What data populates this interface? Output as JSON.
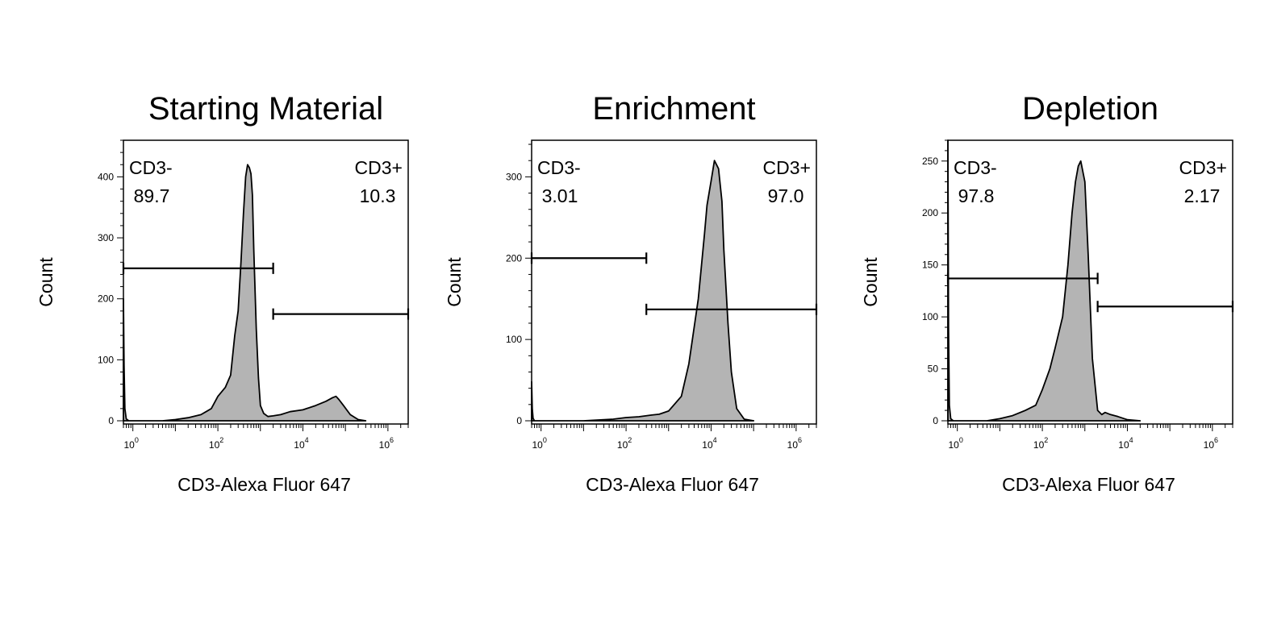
{
  "chart_data": [
    {
      "type": "area",
      "title": "Starting Material",
      "xlabel": "CD3-Alexa Fluor 647",
      "ylabel": "Count",
      "xscale": "log",
      "xlim": [
        0.6,
        3000000
      ],
      "ylim": [
        0,
        460
      ],
      "x_ticks": [
        {
          "value": 1,
          "base": "10",
          "exp": "0"
        },
        {
          "value": 100,
          "base": "10",
          "exp": "2"
        },
        {
          "value": 10000,
          "base": "10",
          "exp": "4"
        },
        {
          "value": 1000000,
          "base": "10",
          "exp": "6"
        }
      ],
      "y_ticks": [
        {
          "value": 0,
          "label": "0"
        },
        {
          "value": 100,
          "label": "100"
        },
        {
          "value": 200,
          "label": "200"
        },
        {
          "value": 300,
          "label": "300"
        },
        {
          "value": 400,
          "label": "400"
        }
      ],
      "histogram": {
        "x": [
          0.6,
          0.62,
          0.65,
          0.7,
          0.8,
          5,
          10,
          20,
          40,
          70,
          100,
          150,
          200,
          250,
          300,
          350,
          400,
          450,
          500,
          550,
          600,
          650,
          700,
          800,
          900,
          1000,
          1200,
          1500,
          2000,
          3000,
          5000,
          10000,
          20000,
          35000,
          50000,
          60000,
          70000,
          90000,
          130000,
          200000,
          300000
        ],
        "y": [
          200,
          90,
          20,
          3,
          0,
          0,
          2,
          5,
          10,
          20,
          40,
          55,
          75,
          140,
          180,
          260,
          340,
          400,
          420,
          415,
          405,
          370,
          280,
          150,
          70,
          25,
          12,
          7,
          8,
          10,
          15,
          18,
          25,
          32,
          38,
          40,
          35,
          25,
          10,
          2,
          0
        ]
      },
      "gates": [
        {
          "name": "CD3-",
          "x_range": [
            0.6,
            2000
          ],
          "y_level": 250,
          "percent": "89.7",
          "position": "top-left"
        },
        {
          "name": "CD3+",
          "x_range": [
            2000,
            3000000
          ],
          "y_level": 175,
          "percent": "10.3",
          "position": "top-right"
        }
      ]
    },
    {
      "type": "area",
      "title": "Enrichment",
      "xlabel": "CD3-Alexa Fluor 647",
      "ylabel": "Count",
      "xscale": "log",
      "xlim": [
        0.6,
        3000000
      ],
      "ylim": [
        0,
        345
      ],
      "x_ticks": [
        {
          "value": 1,
          "base": "10",
          "exp": "0"
        },
        {
          "value": 100,
          "base": "10",
          "exp": "2"
        },
        {
          "value": 10000,
          "base": "10",
          "exp": "4"
        },
        {
          "value": 1000000,
          "base": "10",
          "exp": "6"
        }
      ],
      "y_ticks": [
        {
          "value": 0,
          "label": "0"
        },
        {
          "value": 100,
          "label": "100"
        },
        {
          "value": 200,
          "label": "200"
        },
        {
          "value": 300,
          "label": "300"
        }
      ],
      "histogram": {
        "x": [
          0.6,
          0.62,
          0.65,
          0.7,
          1,
          10,
          50,
          100,
          200,
          400,
          600,
          1000,
          2000,
          3000,
          5000,
          7000,
          8000,
          10000,
          12000,
          15000,
          18000,
          20000,
          25000,
          30000,
          40000,
          60000,
          100000
        ],
        "y": [
          48,
          15,
          3,
          0,
          0,
          0,
          2,
          4,
          5,
          7,
          8,
          12,
          30,
          70,
          150,
          230,
          265,
          295,
          320,
          310,
          270,
          210,
          120,
          60,
          15,
          2,
          0
        ]
      },
      "gates": [
        {
          "name": "CD3-",
          "x_range": [
            0.6,
            300
          ],
          "y_level": 200,
          "percent": "3.01",
          "position": "top-left"
        },
        {
          "name": "CD3+",
          "x_range": [
            300,
            3000000
          ],
          "y_level": 137,
          "percent": "97.0",
          "position": "top-right"
        }
      ]
    },
    {
      "type": "area",
      "title": "Depletion",
      "xlabel": "CD3-Alexa Fluor 647",
      "ylabel": "Count",
      "xscale": "log",
      "xlim": [
        0.6,
        3000000
      ],
      "ylim": [
        0,
        270
      ],
      "x_ticks": [
        {
          "value": 1,
          "base": "10",
          "exp": "0"
        },
        {
          "value": 100,
          "base": "10",
          "exp": "2"
        },
        {
          "value": 10000,
          "base": "10",
          "exp": "4"
        },
        {
          "value": 1000000,
          "base": "10",
          "exp": "6"
        }
      ],
      "y_ticks": [
        {
          "value": 0,
          "label": "0"
        },
        {
          "value": 50,
          "label": "50"
        },
        {
          "value": 100,
          "label": "100"
        },
        {
          "value": 150,
          "label": "150"
        },
        {
          "value": 200,
          "label": "200"
        },
        {
          "value": 250,
          "label": "250"
        }
      ],
      "histogram": {
        "x": [
          0.6,
          0.62,
          0.65,
          0.7,
          0.8,
          5,
          10,
          20,
          40,
          70,
          100,
          150,
          200,
          300,
          400,
          500,
          600,
          700,
          800,
          1000,
          1200,
          1500,
          2000,
          2500,
          3000,
          4000,
          6000,
          10000,
          20000
        ],
        "y": [
          270,
          90,
          15,
          2,
          0,
          0,
          2,
          5,
          10,
          15,
          30,
          50,
          70,
          100,
          150,
          200,
          230,
          245,
          250,
          230,
          160,
          60,
          10,
          6,
          8,
          6,
          4,
          1,
          0
        ]
      },
      "gates": [
        {
          "name": "CD3-",
          "x_range": [
            0.6,
            2000
          ],
          "y_level": 137,
          "percent": "97.8",
          "position": "top-left"
        },
        {
          "name": "CD3+",
          "x_range": [
            2000,
            3000000
          ],
          "y_level": 110,
          "percent": "2.17",
          "position": "top-right"
        }
      ]
    }
  ]
}
